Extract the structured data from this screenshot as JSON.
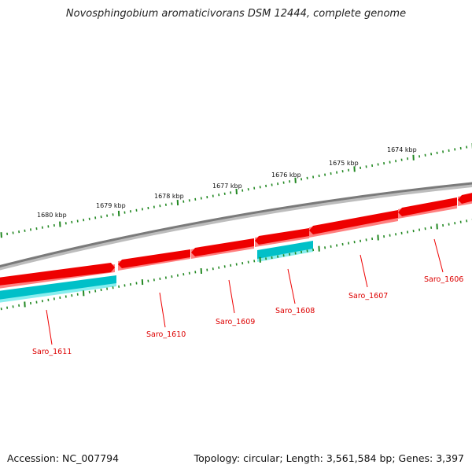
{
  "title": "Novosphingobium aromaticivorans DSM 12444, complete genome",
  "footer": {
    "accession": "Accession: NC_007794",
    "topology": "Topology: circular; Length: 3,561,584 bp; Genes: 3,397"
  },
  "scale_labels": [
    "1680 kbp",
    "1679 kbp",
    "1678 kbp",
    "1677 kbp",
    "1676 kbp",
    "1675 kbp",
    "1674 kbp"
  ],
  "genes": [
    {
      "name": "Saro_1606",
      "strand": "forward"
    },
    {
      "name": "Saro_1607",
      "strand": "forward"
    },
    {
      "name": "Saro_1608",
      "strand": "reverse"
    },
    {
      "name": "Saro_1609",
      "strand": "forward"
    },
    {
      "name": "Saro_1610",
      "strand": "forward"
    },
    {
      "name": "Saro_1611",
      "strand": "reverse"
    }
  ],
  "colors": {
    "forward_gene": "#ee0000",
    "reverse_gene": "#00c0c8",
    "backbone": "#808080",
    "scale_ticks": "#228822",
    "gene_label": "#dd0000"
  }
}
